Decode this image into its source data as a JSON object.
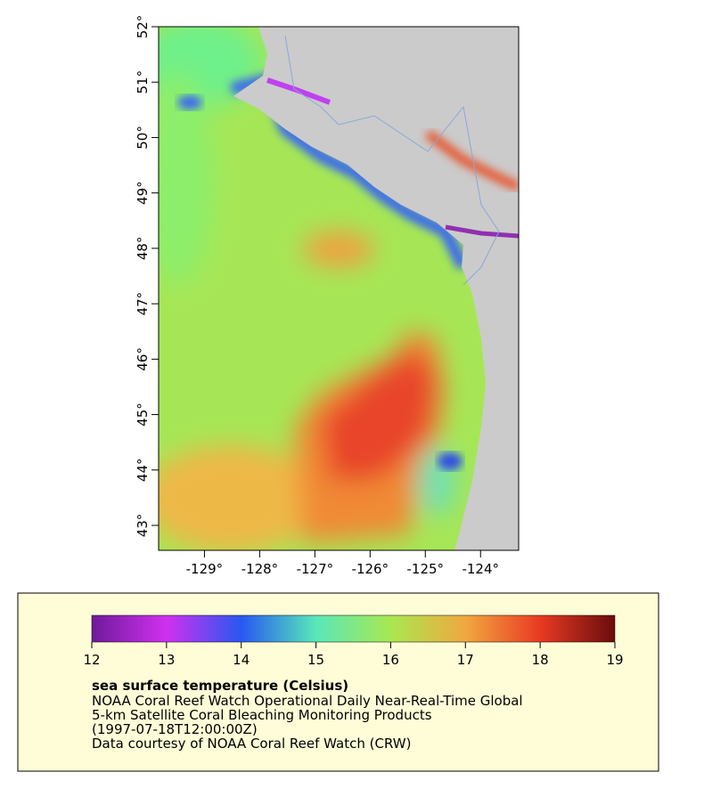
{
  "chart_data": {
    "type": "map",
    "xlim": [
      -129.83,
      -123.31
    ],
    "xticks": [
      {
        "value": -129,
        "label": "-129°"
      },
      {
        "value": -128,
        "label": "-128°"
      },
      {
        "value": -127,
        "label": "-127°"
      },
      {
        "value": -126,
        "label": "-126°"
      },
      {
        "value": -125,
        "label": "-125°"
      },
      {
        "value": -124,
        "label": "-124°"
      }
    ],
    "ylim": [
      42.55,
      52
    ],
    "yticks": [
      {
        "value": 43,
        "label": "43°"
      },
      {
        "value": 44,
        "label": "44°"
      },
      {
        "value": 45,
        "label": "45°"
      },
      {
        "value": 46,
        "label": "46°"
      },
      {
        "value": 47,
        "label": "47°"
      },
      {
        "value": 48,
        "label": "48°"
      },
      {
        "value": 49,
        "label": "49°"
      },
      {
        "value": 50,
        "label": "50°"
      },
      {
        "value": 51,
        "label": "51°"
      },
      {
        "value": 52,
        "label": "52°"
      }
    ],
    "colorbar": {
      "lim": [
        12,
        19
      ],
      "ticks": [
        12,
        13,
        14,
        15,
        16,
        17,
        18,
        19
      ],
      "colors": [
        "#6f1a9a",
        "#d030f0",
        "#2858f0",
        "#58e8b8",
        "#a8e850",
        "#f0a840",
        "#e83a22",
        "#6a0c0c"
      ]
    },
    "legend_title": "sea surface temperature (Celsius)",
    "legend_lines": [
      "NOAA Coral Reef Watch Operational Daily Near-Real-Time Global",
      "5-km Satellite Coral Bleaching Monitoring Products",
      "(1997-07-18T12:00:00Z)",
      "Data courtesy of NOAA Coral Reef Watch (CRW)"
    ]
  }
}
